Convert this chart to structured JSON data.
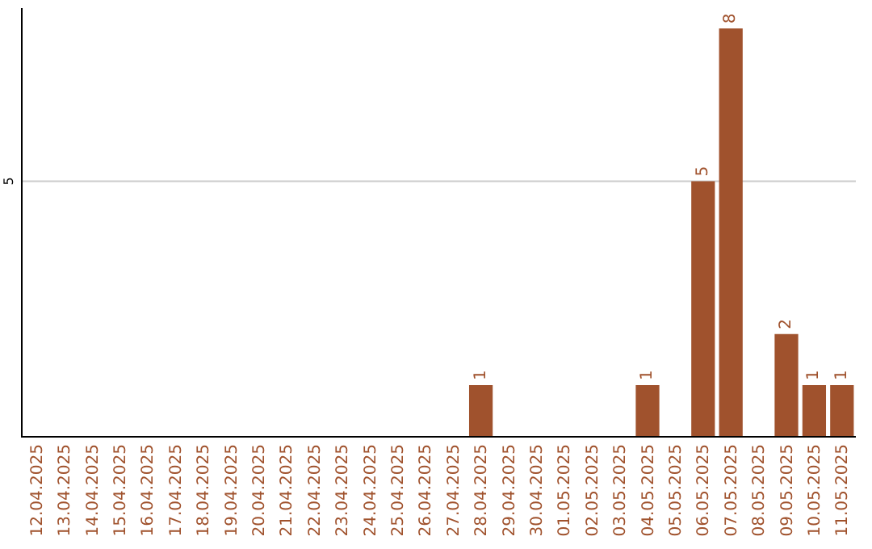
{
  "chart_data": {
    "type": "bar",
    "data_labels": true,
    "ylim": [
      0,
      8.4
    ],
    "categories": [
      "12.04.2025",
      "13.04.2025",
      "14.04.2025",
      "15.04.2025",
      "16.04.2025",
      "17.04.2025",
      "18.04.2025",
      "19.04.2025",
      "20.04.2025",
      "21.04.2025",
      "22.04.2025",
      "23.04.2025",
      "24.04.2025",
      "25.04.2025",
      "26.04.2025",
      "27.04.2025",
      "28.04.2025",
      "29.04.2025",
      "30.04.2025",
      "01.05.2025",
      "02.05.2025",
      "03.05.2025",
      "04.05.2025",
      "05.05.2025",
      "06.05.2025",
      "07.05.2025",
      "08.05.2025",
      "09.05.2025",
      "10.05.2025",
      "11.05.2025"
    ],
    "values": [
      null,
      null,
      null,
      null,
      null,
      null,
      null,
      null,
      null,
      null,
      null,
      null,
      null,
      null,
      null,
      null,
      1,
      null,
      null,
      null,
      null,
      null,
      1,
      null,
      5,
      8,
      null,
      2,
      1,
      1
    ],
    "color": "#a0522d",
    "ref_lines": [
      {
        "axis": "y",
        "value": 5,
        "label": "5",
        "color": "#cccccc"
      }
    ]
  }
}
